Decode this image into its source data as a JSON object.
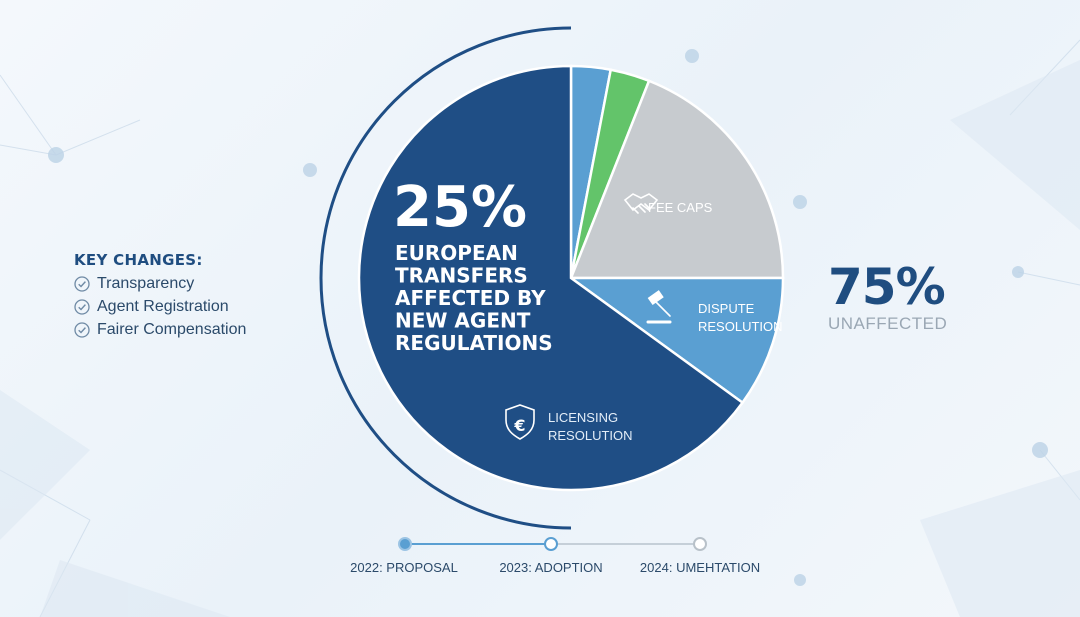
{
  "key_changes": {
    "title": "KEY CHANGES:",
    "items": [
      "Transparency",
      "Agent Registration",
      "Fairer Compensation"
    ]
  },
  "callout": {
    "value": "75%",
    "label": "UNAFFECTED"
  },
  "timeline": [
    "2022: PROPOSAL",
    "2023: ADOPTION",
    "2024: UMEHTATION"
  ],
  "colors": {
    "navy": "#1f4e85",
    "blue": "#5a9fd2",
    "green": "#63c46a",
    "gray": "#c7cbcf",
    "title_text": "#1f4d80"
  },
  "chart_data": {
    "type": "pie",
    "slices": [
      {
        "label": "",
        "value": 3,
        "color": "#5a9fd2"
      },
      {
        "label": "",
        "value": 3,
        "color": "#63c46a"
      },
      {
        "label": "FEE CAPS",
        "value": 19,
        "color": "#c7cbcf",
        "icon": "handshake-icon"
      },
      {
        "label": "DISPUTE RESOLUTION",
        "value": 10,
        "color": "#5a9fd2",
        "icon": "gavel-icon"
      },
      {
        "label": "LICENSING RESOLUTION",
        "value": 65,
        "color": "#1f4e85",
        "icon": "euro-shield-icon"
      }
    ],
    "headline": {
      "value": "25%",
      "lines": [
        "EUROPEAN",
        "TRANSFERS",
        "AFFECTED BY",
        "NEW AGENT",
        "REGULATIONS"
      ]
    }
  }
}
